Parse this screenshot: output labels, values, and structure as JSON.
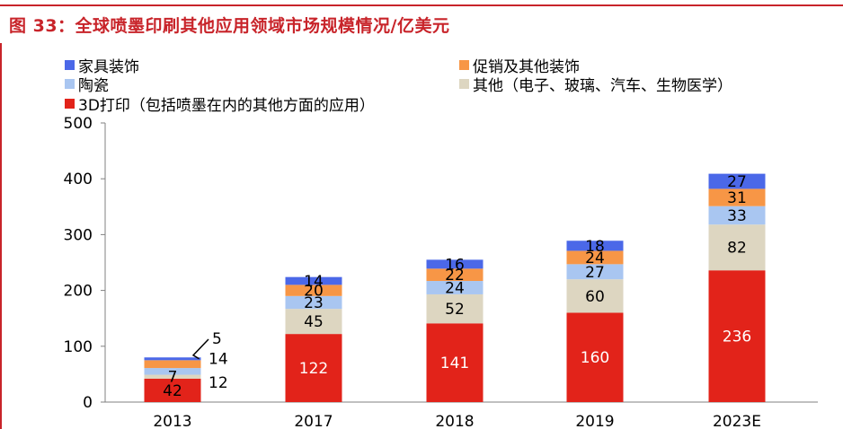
{
  "title": "图 33：全球喷墨印刷其他应用领域市场规模情况/亿美元",
  "colors": {
    "accent": "#c8242a",
    "furniture": "#4b68e8",
    "promo": "#f79646",
    "ceramic": "#a9c6f1",
    "other": "#ddd6c1",
    "print3d": "#e2231a"
  },
  "chart_data": {
    "type": "bar",
    "stacked": true,
    "title": "全球喷墨印刷其他应用领域市场规模情况/亿美元",
    "categories": [
      "2013",
      "2017",
      "2018",
      "2019",
      "2023E"
    ],
    "series": [
      {
        "key": "print3d",
        "name": "3D打印（包括喷墨在内的其他方面的应用）",
        "values": [
          42,
          122,
          141,
          160,
          236
        ]
      },
      {
        "key": "other",
        "name": "其他（电子、玻璃、汽车、生物医学）",
        "values": [
          7,
          45,
          52,
          60,
          82
        ]
      },
      {
        "key": "ceramic",
        "name": "陶瓷",
        "values": [
          12,
          23,
          24,
          27,
          33
        ]
      },
      {
        "key": "promo",
        "name": "促销及其他装饰",
        "values": [
          14,
          20,
          22,
          24,
          31
        ]
      },
      {
        "key": "furniture",
        "name": "家具装饰",
        "values": [
          5,
          14,
          16,
          18,
          27
        ]
      }
    ],
    "yticks": [
      "0",
      "100",
      "200",
      "300",
      "400",
      "500"
    ],
    "ylim": [
      0,
      500
    ],
    "xlabel": "",
    "ylabel": ""
  }
}
